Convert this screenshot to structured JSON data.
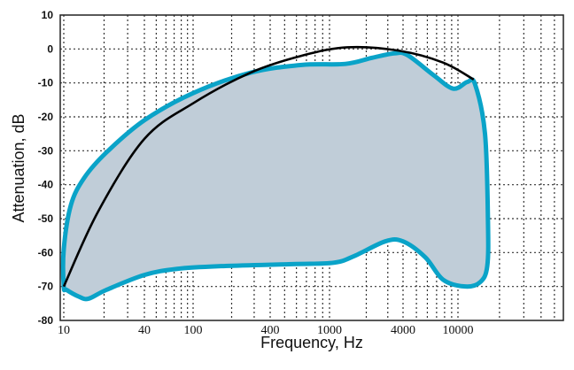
{
  "chart_data": {
    "type": "area",
    "title": "",
    "xlabel": "Frequency, Hz",
    "ylabel": "Attenuation, dB",
    "xscale": "log",
    "xlim": [
      10,
      58000
    ],
    "ylim": [
      -80,
      10
    ],
    "grid": true,
    "x_tick_labels": [
      "10",
      "40",
      "100",
      "400",
      "1000",
      "4000",
      "10000"
    ],
    "x_ticks": [
      10,
      40,
      100,
      400,
      1000,
      4000,
      10000
    ],
    "y_ticks": [
      10,
      0,
      -10,
      -20,
      -30,
      -40,
      -50,
      -60,
      -70,
      -80
    ],
    "y_tick_labels": [
      "10",
      "0",
      "-10",
      "-20",
      "-30",
      "-40",
      "-50",
      "-60",
      "-70",
      "-80"
    ],
    "colors": {
      "band_fill": "#c0cdd8",
      "band_edge": "#0aa3c8",
      "curve": "#000000"
    },
    "band_outline": [
      [
        10,
        -70
      ],
      [
        10,
        -59
      ],
      [
        11.3,
        -46
      ],
      [
        14.2,
        -38
      ],
      [
        20.8,
        -30.5
      ],
      [
        40,
        -21
      ],
      [
        100,
        -13
      ],
      [
        280,
        -7
      ],
      [
        650,
        -4.7
      ],
      [
        1350,
        -4.4
      ],
      [
        2230,
        -2.6
      ],
      [
        3380,
        -1.3
      ],
      [
        4300,
        -1.8
      ],
      [
        6700,
        -7.8
      ],
      [
        9250,
        -11.7
      ],
      [
        11700,
        -9.7
      ],
      [
        13300,
        -10.4
      ],
      [
        15700,
        -25
      ],
      [
        16500,
        -51
      ],
      [
        16300,
        -64
      ],
      [
        14500,
        -68.7
      ],
      [
        11300,
        -70
      ],
      [
        7800,
        -68
      ],
      [
        5800,
        -61.4
      ],
      [
        4000,
        -56.7
      ],
      [
        2860,
        -56.7
      ],
      [
        1600,
        -61
      ],
      [
        1080,
        -63
      ],
      [
        565,
        -63.4
      ],
      [
        166,
        -64
      ],
      [
        74,
        -64.8
      ],
      [
        40,
        -66.6
      ],
      [
        20.8,
        -71
      ],
      [
        15.3,
        -73.6
      ],
      [
        13,
        -73
      ],
      [
        10.5,
        -71
      ]
    ],
    "curve": {
      "x": [
        10,
        18,
        40,
        100,
        280,
        650,
        1400,
        3700,
        7800,
        13000
      ],
      "y": [
        -70,
        -48,
        -26.5,
        -16,
        -7,
        -2,
        0.5,
        -0.5,
        -4,
        -9
      ]
    }
  }
}
